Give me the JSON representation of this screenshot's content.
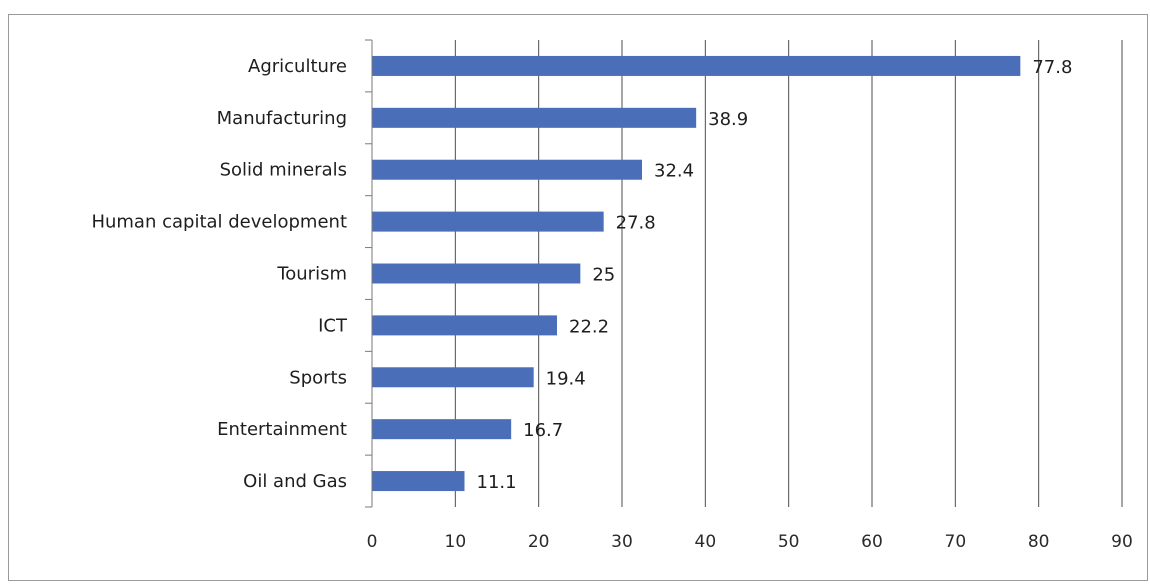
{
  "chart_data": {
    "type": "bar",
    "orientation": "horizontal",
    "categories": [
      "Agriculture",
      "Manufacturing",
      "Solid minerals",
      "Human capital development",
      "Tourism",
      "ICT",
      "Sports",
      "Entertainment",
      "Oil and Gas"
    ],
    "values": [
      77.8,
      38.9,
      32.4,
      27.8,
      25,
      22.2,
      19.4,
      16.7,
      11.1
    ],
    "value_labels": [
      "77.8",
      "38.9",
      "32.4",
      "27.8",
      "25",
      "22.2",
      "19.4",
      "16.7",
      "11.1"
    ],
    "xlim": [
      0,
      90
    ],
    "x_ticks": [
      0,
      10,
      20,
      30,
      40,
      50,
      60,
      70,
      80,
      90
    ],
    "x_tick_labels": [
      "0",
      "10",
      "20",
      "30",
      "40",
      "50",
      "60",
      "70",
      "80",
      "90"
    ],
    "grid": "vertical",
    "legend": "none",
    "bar_color": "#4a6fb8",
    "grid_color": "#4d4d4d"
  }
}
